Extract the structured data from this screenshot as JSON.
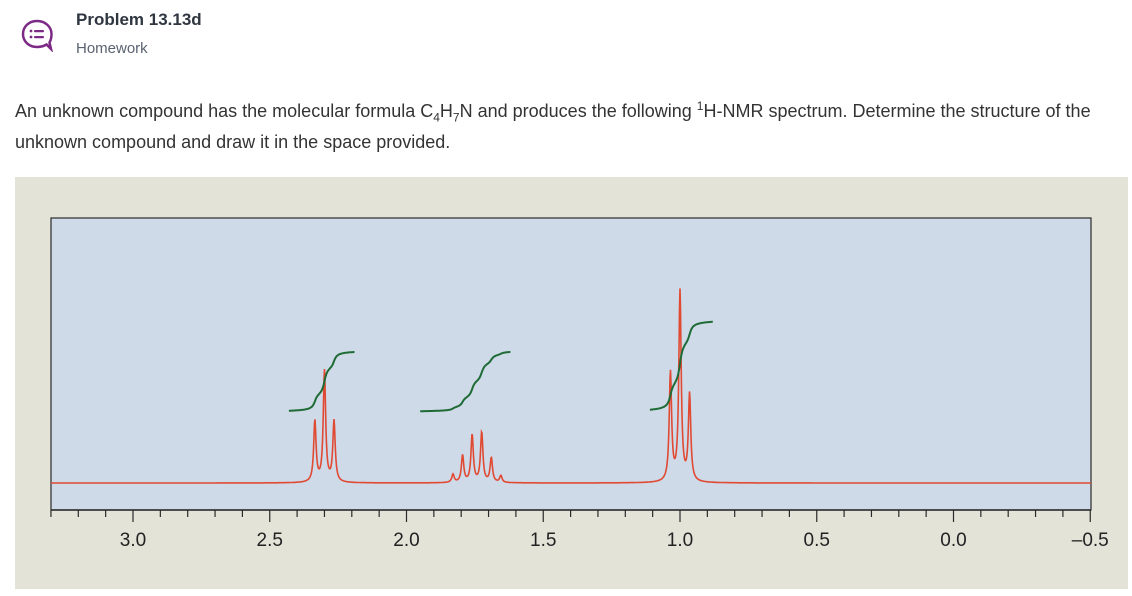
{
  "header": {
    "title": "Problem 13.13d",
    "subtitle": "Homework",
    "icon": "chat-bubble-list-icon",
    "icon_color": "#7d2a86"
  },
  "prompt": {
    "part1": "An unknown compound has the molecular formula C",
    "c_sub": "4",
    "h": "H",
    "h_sub": "7",
    "part2": "N and produces the following ",
    "sup": "1",
    "part3": "H-NMR spectrum. Determine the structure of the unknown compound and draw it in the space provided."
  },
  "chart_data": {
    "type": "line",
    "title": "",
    "xlabel": "",
    "ylabel": "",
    "xlim": [
      3.3,
      -0.5
    ],
    "x_ticks": [
      "3.0",
      "2.5",
      "2.0",
      "1.5",
      "1.0",
      "0.5",
      "0.0",
      "–0.5"
    ],
    "x_axis_reversed": true,
    "grid": false,
    "colors": {
      "spectrum": "#e04a33",
      "integral": "#1e6b35",
      "plot_bg": "#cfdae9",
      "frame_bg": "#e3e3d8"
    },
    "peaks": [
      {
        "group": "CH2 near 2.3 ppm",
        "multiplicity": "triplet",
        "center_ppm": 2.3,
        "lines_ppm": [
          2.335,
          2.3,
          2.265
        ],
        "relative_heights": [
          0.45,
          0.82,
          0.45
        ]
      },
      {
        "group": "CH2 near 1.74 ppm",
        "multiplicity": "sextet",
        "center_ppm": 1.74,
        "lines_ppm": [
          1.83,
          1.795,
          1.76,
          1.725,
          1.69,
          1.655
        ],
        "relative_heights": [
          0.06,
          0.2,
          0.35,
          0.37,
          0.18,
          0.05
        ]
      },
      {
        "group": "CH3 near 1.0 ppm",
        "multiplicity": "triplet",
        "center_ppm": 1.0,
        "lines_ppm": [
          1.035,
          1.0,
          0.965
        ],
        "relative_heights": [
          0.8,
          1.4,
          0.64
        ]
      }
    ],
    "integrals": [
      {
        "start_ppm": 2.43,
        "end_ppm": 2.19,
        "relative_area": 2
      },
      {
        "start_ppm": 1.95,
        "end_ppm": 1.62,
        "relative_area": 2
      },
      {
        "start_ppm": 1.11,
        "end_ppm": 0.88,
        "relative_area": 3
      }
    ]
  }
}
